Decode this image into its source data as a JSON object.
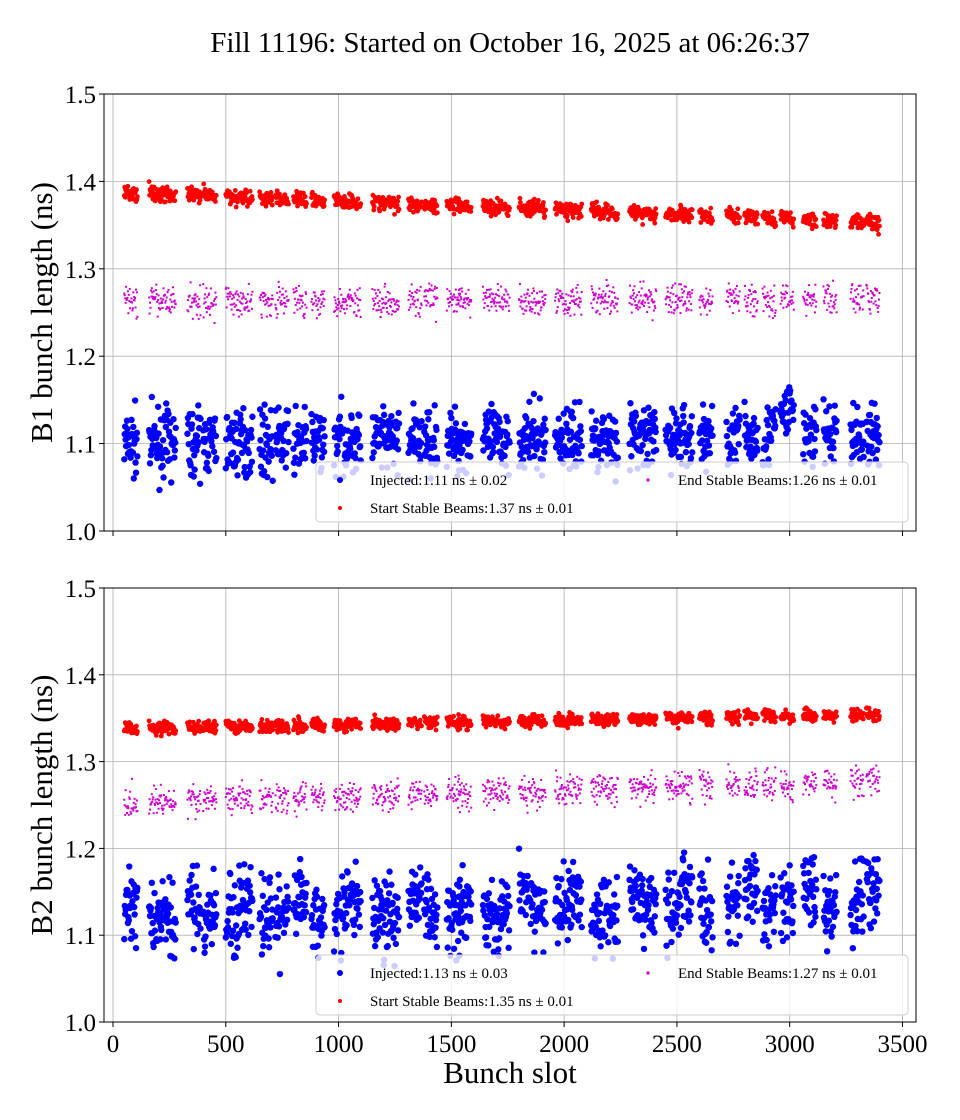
{
  "chart_data": [
    {
      "type": "scatter",
      "title": "Fill 11196: Started on October 16, 2025 at 06:26:37",
      "xlabel": "",
      "ylabel": "B1 bunch length (ns)",
      "xlim": [
        -40,
        3560
      ],
      "ylim": [
        1.0,
        1.5
      ],
      "xticks": [
        0,
        500,
        1000,
        1500,
        2000,
        2500,
        3000,
        3500
      ],
      "yticks": [
        "1.0",
        "1.1",
        "1.2",
        "1.3",
        "1.4",
        "1.5"
      ],
      "grid": true,
      "legend_placement": "lower-right",
      "train_starts": [
        50,
        160,
        220,
        330,
        400,
        500,
        560,
        650,
        720,
        800,
        880,
        980,
        1040,
        1150,
        1210,
        1310,
        1380,
        1480,
        1530,
        1640,
        1700,
        1800,
        1860,
        1960,
        2020,
        2120,
        2180,
        2290,
        2350,
        2450,
        2510,
        2600,
        2720,
        2800,
        2880,
        2960,
        3060,
        3150,
        3270,
        3340
      ],
      "train_length": 60,
      "series": [
        {
          "name": "Injected:1.11 ns ± 0.02",
          "color": "#0000ff",
          "marker": "large-dot",
          "y_start": 1.1,
          "y_end": 1.11,
          "spread": 0.025
        },
        {
          "name": "Start Stable Beams:1.37 ns ± 0.01",
          "color": "#ff0000",
          "marker": "dot",
          "y_start": 1.39,
          "y_end": 1.355,
          "spread": 0.006
        },
        {
          "name": "End Stable Beams:1.26 ns ± 0.01",
          "color": "#cc00cc",
          "marker": "small-square",
          "y_start": 1.265,
          "y_end": 1.268,
          "spread": 0.012
        }
      ]
    },
    {
      "type": "scatter",
      "xlabel": "Bunch slot",
      "ylabel": "B2 bunch length (ns)",
      "xlim": [
        -40,
        3560
      ],
      "ylim": [
        1.0,
        1.5
      ],
      "xticks": [
        0,
        500,
        1000,
        1500,
        2000,
        2500,
        3000,
        3500
      ],
      "yticks": [
        "1.0",
        "1.1",
        "1.2",
        "1.3",
        "1.4",
        "1.5"
      ],
      "grid": true,
      "legend_placement": "lower-right",
      "series": [
        {
          "name": "Injected:1.13 ns ± 0.03",
          "color": "#0000ff",
          "marker": "large-dot",
          "y_start": 1.115,
          "y_end": 1.135,
          "spread": 0.03
        },
        {
          "name": "Start Stable Beams:1.35 ns ± 0.01",
          "color": "#ff0000",
          "marker": "dot",
          "y_start": 1.34,
          "y_end": 1.357,
          "spread": 0.005
        },
        {
          "name": "End Stable Beams:1.27 ns ± 0.01",
          "color": "#cc00cc",
          "marker": "small-square",
          "y_start": 1.255,
          "y_end": 1.28,
          "spread": 0.012
        }
      ]
    }
  ]
}
